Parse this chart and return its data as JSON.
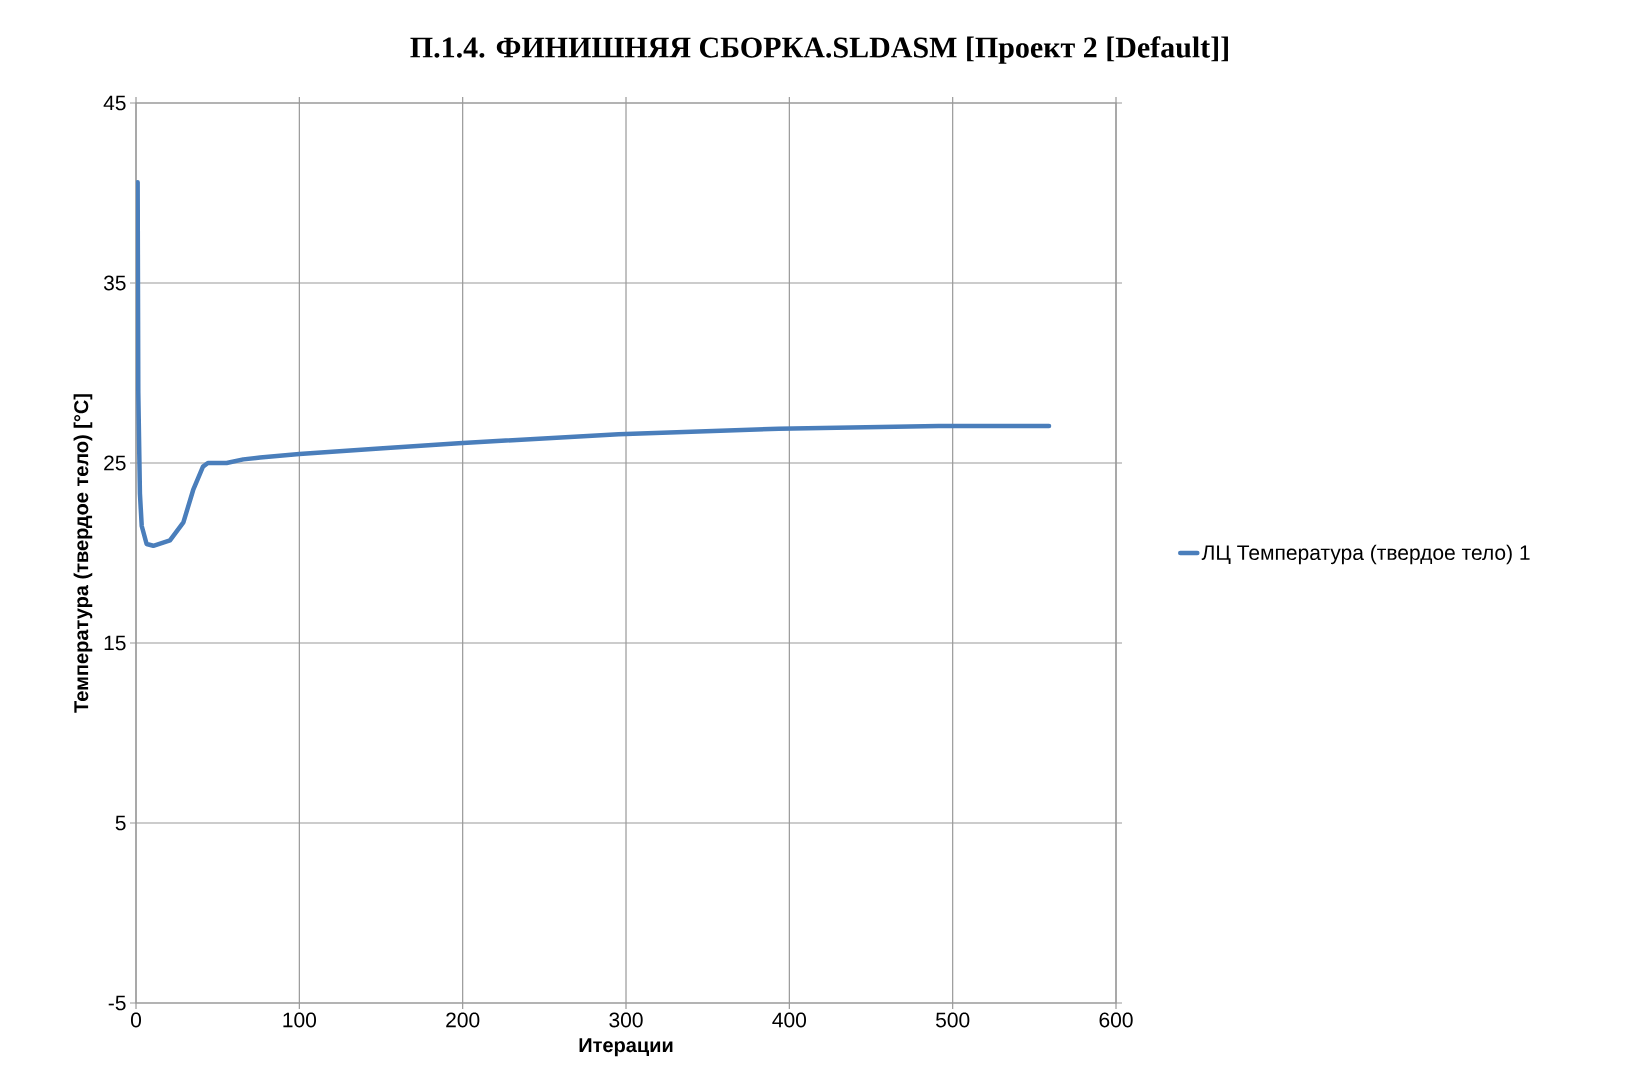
{
  "chart_data": {
    "type": "line",
    "title": "П.1.4. ФИНИШНЯЯ СБОРКА.SLDASM [Проект 2 [Default]]",
    "xlabel": "Итерации",
    "ylabel": "Температура (твердое тело)  [°C]",
    "x": [
      1,
      1.4,
      2.4,
      3.5,
      6.5,
      10.6,
      20.8,
      29,
      35,
      41,
      44,
      55.5,
      65.7,
      76,
      100,
      149,
      197.5,
      295.5,
      393.4,
      491.4,
      559
    ],
    "series": [
      {
        "name": "ЛЦ Температура (твердое тело) 1",
        "color": "#4a7ebb",
        "values": [
          40.6,
          28.9,
          23.3,
          21.5,
          20.5,
          20.4,
          20.7,
          21.7,
          23.5,
          24.8,
          25.0,
          25.0,
          25.2,
          25.3,
          25.5,
          25.8,
          26.1,
          26.6,
          26.9,
          27.05,
          27.05
        ]
      }
    ],
    "xlim": [
      0,
      600
    ],
    "ylim": [
      -5,
      45
    ],
    "xticks": [
      0,
      100,
      200,
      300,
      400,
      500,
      600
    ],
    "yticks": [
      -5,
      5,
      15,
      25,
      35,
      45
    ],
    "grid": true,
    "legend": "right",
    "marker": "none",
    "line_style": "solid"
  }
}
